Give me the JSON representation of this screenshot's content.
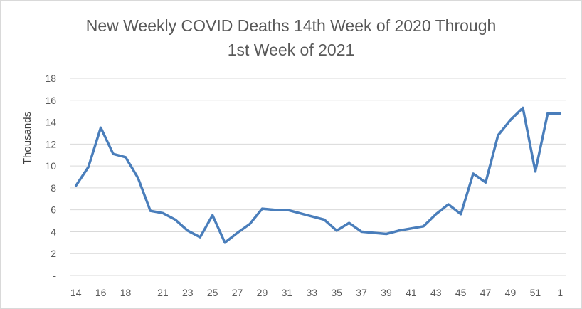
{
  "chart_data": {
    "type": "line",
    "title_line1": "New Weekly COVID Deaths 14th Week of 2020 Through",
    "title_line2": "1st Week of 2021",
    "xlabel": "",
    "ylabel": "Thousands",
    "ylim": [
      0,
      18
    ],
    "y_ticks": [
      "-",
      "2",
      "4",
      "6",
      "8",
      "10",
      "12",
      "14",
      "16",
      "18"
    ],
    "y_tick_values": [
      0,
      2,
      4,
      6,
      8,
      10,
      12,
      14,
      16,
      18
    ],
    "x": [
      "14",
      "15",
      "16",
      "17",
      "18",
      "19",
      "20",
      "21",
      "22",
      "23",
      "24",
      "25",
      "26",
      "27",
      "28",
      "29",
      "30",
      "31",
      "32",
      "33",
      "34",
      "35",
      "36",
      "37",
      "38",
      "39",
      "40",
      "41",
      "42",
      "43",
      "44",
      "45",
      "46",
      "47",
      "48",
      "49",
      "50",
      "51",
      "52",
      "1"
    ],
    "x_tick_labels": [
      "14",
      "16",
      "18",
      "21",
      "23",
      "25",
      "27",
      "29",
      "31",
      "33",
      "35",
      "37",
      "39",
      "41",
      "43",
      "45",
      "47",
      "49",
      "51",
      "1"
    ],
    "x_tick_indices": [
      0,
      2,
      4,
      7,
      9,
      11,
      13,
      15,
      17,
      19,
      21,
      23,
      25,
      27,
      29,
      31,
      33,
      35,
      37,
      39
    ],
    "series": [
      {
        "values": [
          8.2,
          9.9,
          13.5,
          11.1,
          10.8,
          8.9,
          5.9,
          5.7,
          5.1,
          4.1,
          3.5,
          5.5,
          3.0,
          3.9,
          4.7,
          6.1,
          6.0,
          6.0,
          5.7,
          5.4,
          5.1,
          4.1,
          4.8,
          4.0,
          3.9,
          3.8,
          4.1,
          4.3,
          4.5,
          5.6,
          6.5,
          5.6,
          9.3,
          8.5,
          12.8,
          14.2,
          15.3,
          9.5,
          14.8,
          14.8
        ],
        "color": "#4a7ebb"
      }
    ],
    "grid": true,
    "legend": "none"
  }
}
